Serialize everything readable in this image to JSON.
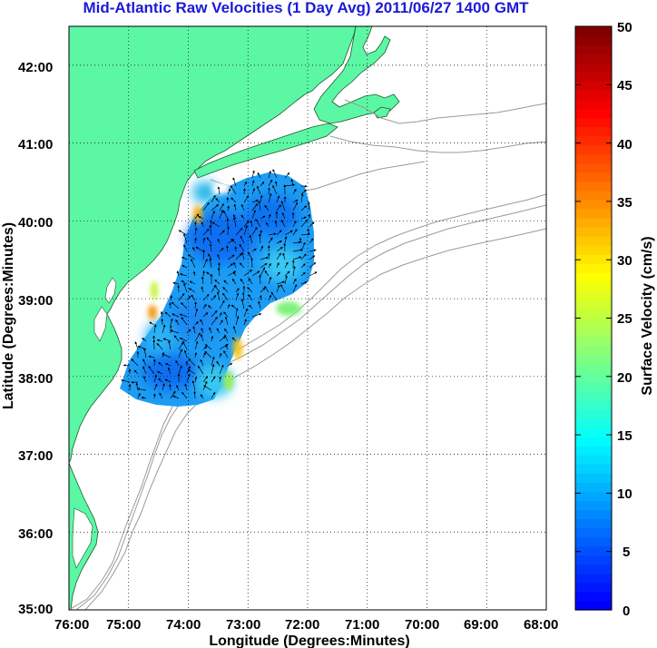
{
  "title": "Mid-Atlantic Raw Velocities (1 Day Avg) 2011/06/27 1400 GMT",
  "x_axis": {
    "label": "Longitude (Degrees:Minutes)",
    "ticks": [
      "76:00",
      "75:00",
      "74:00",
      "73:00",
      "72:00",
      "71:00",
      "70:00",
      "69:00",
      "68:00"
    ]
  },
  "y_axis": {
    "label": "Latitude (Degrees:Minutes)",
    "ticks": [
      "42:00",
      "41:00",
      "40:00",
      "39:00",
      "38:00",
      "37:00",
      "36:00",
      "35:00"
    ]
  },
  "colorbar": {
    "label": "Surface Velocity (cm/s)",
    "ticks": [
      "50",
      "45",
      "40",
      "35",
      "30",
      "25",
      "20",
      "15",
      "10",
      "5",
      "0"
    ],
    "min": 0,
    "max": 50,
    "colormap": "jet"
  },
  "map_extent": {
    "lon_min": -76,
    "lon_max": -68,
    "lat_min": 35,
    "lat_max": 42.5
  },
  "colors": {
    "land": "#5cf7a5",
    "ocean": "#ffffff",
    "title": "#1a1ad8",
    "grid": "#000000",
    "bathymetry": "#9a9a9a"
  },
  "grid_style": "dotted"
}
